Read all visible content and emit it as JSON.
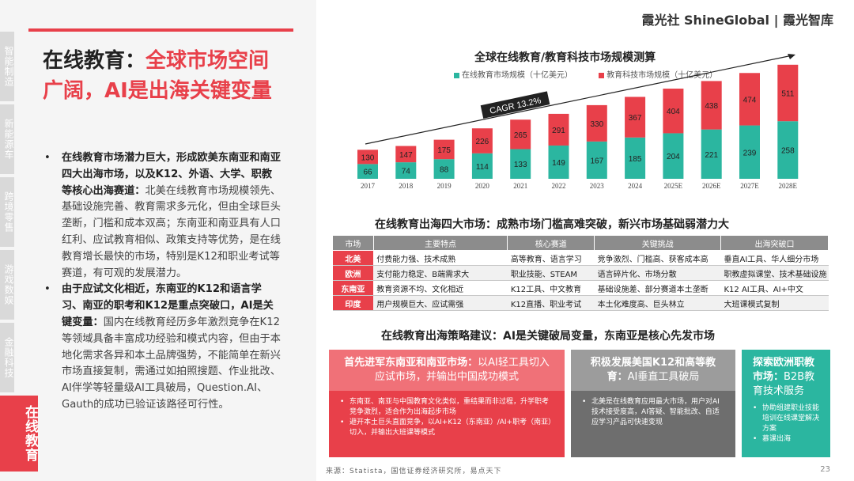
{
  "brand": "霞光社 ShineGlobal | 霞光智库",
  "sidetabs": [
    "智能制造",
    "新能源车",
    "跨境零售",
    "游戏数娱",
    "金融科技",
    "在线教育"
  ],
  "title": {
    "line1": "在线教育：",
    "accent": "全球市场空间广阔，AI是出海关键变量"
  },
  "bullets": [
    {
      "bold": "在线教育市场潜力巨大，形成欧美东南亚和南亚四大出海市场，以及K12、外语、大学、职教等核心出海赛道：",
      "text": "北美在线教育市场规模领先、基础设施完善、教育需求多元化，但由全球巨头垄断，门槛和成本双高；东南亚和南亚具有人口红利、应试教育相似、政策支持等优势，是在线教育增长最快的市场，特别是K12和职业考试等赛道，有可观的发展潜力。"
    },
    {
      "bold": "由于应试文化相近，东南亚的K12和语言学习、南亚的职考和K12是重点突破口，AI是关键变量：",
      "text": "国内在线教育经历多年激烈竞争在K12等领域具备丰富成功经验和模式内容，但由于本地化需求各异和本土品牌强势，不能简单在新兴市场直接复制，需通过如拍照搜题、作业批改、AI伴学等轻量级AI工具破局，Question.AI、Gauth的成功已验证该路径可行性。"
    }
  ],
  "chart_data": {
    "type": "bar",
    "title": "全球在线教育/教育科技市场规模测算",
    "categories": [
      "2017",
      "2018",
      "2019",
      "2020",
      "2021",
      "2022",
      "2023",
      "2024",
      "2025E",
      "2026E",
      "2027E",
      "2028E"
    ],
    "series": [
      {
        "name": "在线教育市场规模（十亿美元）",
        "values": [
          66,
          74,
          88,
          114,
          133,
          149,
          167,
          185,
          204,
          221,
          239,
          258
        ],
        "color": "#2bb6a0"
      },
      {
        "name": "教育科技市场规模（十亿美元）",
        "values": [
          130,
          147,
          175,
          226,
          265,
          291,
          330,
          367,
          404,
          438,
          474,
          511
        ],
        "color": "#e8404a"
      }
    ],
    "annotation": "CAGR 13.2%",
    "ylim": [
      0,
      560
    ]
  },
  "markets": {
    "title": "在线教育出海四大市场：成熟市场门槛高难突破，新兴市场基础弱潜力大",
    "headers": [
      "市场",
      "主要特点",
      "核心赛道",
      "关键挑战",
      "出海突破口"
    ],
    "rows": [
      [
        "北美",
        "付费能力强、技术成熟",
        "高等教育、语言学习",
        "竞争激烈、门槛高、获客成本高",
        "垂直AI工具、华人细分市场"
      ],
      [
        "欧洲",
        "支付能力稳定、B端需求大",
        "职业技能、STEAM",
        "语言碎片化、市场分散",
        "职教虚拟课堂、技术基础设施"
      ],
      [
        "东南亚",
        "教育资源不均、文化相近",
        "K12工具、中文教育",
        "基础设施差、部分赛道本土垄断",
        "K12 AI工具、AI+中文"
      ],
      [
        "印度",
        "用户规模巨大、应试需强",
        "K12直播、职业考试",
        "本土化难度高、巨头林立",
        "大班课模式复制"
      ]
    ]
  },
  "strategy": {
    "title": "在线教育出海策略建议：AI是关键破局变量，东南亚是核心先发市场",
    "box1": {
      "head_bold": "首先进军东南亚和南亚市场：",
      "head_text": "以AI轻工具切入应试市场，并输出中国成功模式",
      "items": [
        "东南亚、南亚与中国教育文化类似，重结果而非过程，升学职考竞争激烈，适合作为出海起步市场",
        "避开本土巨头直面竞争，以AI+K12（东南亚）/AI+职考（南亚）切入，并输出大班课等模式"
      ]
    },
    "box2": {
      "head_bold": "积极发展美国K12和高等教育：",
      "head_text": "AI垂直工具破局",
      "items": [
        "北美是在线教育应用最大市场，用户对AI技术接受度高，AI答疑、智能批改、自适应学习产品可快速变现"
      ]
    },
    "box3": {
      "head_bold": "探索欧洲职教市场：",
      "head_text": "B2B教育技术服务",
      "items": [
        "协助组建职业技能培训在线课堂解决方案",
        "慕课出海"
      ]
    }
  },
  "source": "来源：Statista，国信证券经济研究所，易点天下",
  "page": "23"
}
